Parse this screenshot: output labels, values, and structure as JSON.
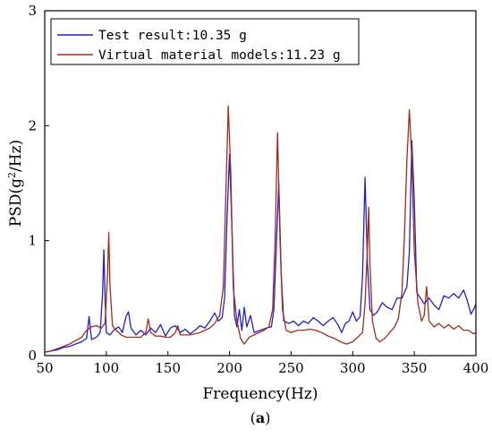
{
  "chart_data": {
    "type": "line",
    "title": "",
    "xlabel": "Frequency(Hz)",
    "ylabel": "PSD(g²/Hz)",
    "ylabel_parts": {
      "prefix": "PSD(g",
      "sup": "2",
      "suffix": "/Hz)"
    },
    "xlim": [
      50,
      400
    ],
    "ylim": [
      0,
      3
    ],
    "xticks": [
      50,
      100,
      150,
      200,
      250,
      300,
      350,
      400
    ],
    "yticks": [
      0,
      1,
      2,
      3
    ],
    "grid": false,
    "legend_position": "top-left",
    "subcaption_prefix": "(",
    "subcaption_letter": "a",
    "subcaption_suffix": ")",
    "series": [
      {
        "name": "Test result:10.35 g",
        "color": "#1f1fcc",
        "points": [
          [
            50,
            0.03
          ],
          [
            55,
            0.04
          ],
          [
            60,
            0.05
          ],
          [
            65,
            0.07
          ],
          [
            70,
            0.08
          ],
          [
            75,
            0.1
          ],
          [
            80,
            0.12
          ],
          [
            84,
            0.15
          ],
          [
            86,
            0.34
          ],
          [
            88,
            0.14
          ],
          [
            92,
            0.16
          ],
          [
            95,
            0.2
          ],
          [
            97,
            0.55
          ],
          [
            98,
            0.92
          ],
          [
            99,
            0.5
          ],
          [
            100,
            0.2
          ],
          [
            103,
            0.18
          ],
          [
            106,
            0.22
          ],
          [
            110,
            0.25
          ],
          [
            113,
            0.2
          ],
          [
            116,
            0.34
          ],
          [
            118,
            0.38
          ],
          [
            120,
            0.24
          ],
          [
            124,
            0.18
          ],
          [
            128,
            0.22
          ],
          [
            132,
            0.18
          ],
          [
            136,
            0.24
          ],
          [
            140,
            0.2
          ],
          [
            144,
            0.27
          ],
          [
            148,
            0.17
          ],
          [
            152,
            0.24
          ],
          [
            156,
            0.26
          ],
          [
            160,
            0.2
          ],
          [
            164,
            0.23
          ],
          [
            168,
            0.19
          ],
          [
            172,
            0.22
          ],
          [
            176,
            0.26
          ],
          [
            180,
            0.24
          ],
          [
            184,
            0.3
          ],
          [
            188,
            0.37
          ],
          [
            191,
            0.3
          ],
          [
            194,
            0.33
          ],
          [
            196,
            0.5
          ],
          [
            198,
            1.2
          ],
          [
            200,
            1.75
          ],
          [
            202,
            1.1
          ],
          [
            204,
            0.35
          ],
          [
            206,
            0.25
          ],
          [
            208,
            0.4
          ],
          [
            210,
            0.22
          ],
          [
            212,
            0.42
          ],
          [
            214,
            0.25
          ],
          [
            217,
            0.35
          ],
          [
            220,
            0.2
          ],
          [
            225,
            0.22
          ],
          [
            230,
            0.24
          ],
          [
            234,
            0.25
          ],
          [
            236,
            0.4
          ],
          [
            238,
            0.95
          ],
          [
            240,
            1.5
          ],
          [
            242,
            0.7
          ],
          [
            244,
            0.3
          ],
          [
            248,
            0.28
          ],
          [
            252,
            0.3
          ],
          [
            256,
            0.26
          ],
          [
            260,
            0.3
          ],
          [
            264,
            0.28
          ],
          [
            268,
            0.33
          ],
          [
            272,
            0.3
          ],
          [
            276,
            0.26
          ],
          [
            280,
            0.3
          ],
          [
            284,
            0.33
          ],
          [
            288,
            0.27
          ],
          [
            291,
            0.2
          ],
          [
            294,
            0.28
          ],
          [
            297,
            0.3
          ],
          [
            300,
            0.38
          ],
          [
            303,
            0.3
          ],
          [
            306,
            0.34
          ],
          [
            308,
            0.7
          ],
          [
            310,
            1.55
          ],
          [
            312,
            0.8
          ],
          [
            314,
            0.4
          ],
          [
            317,
            0.35
          ],
          [
            320,
            0.38
          ],
          [
            324,
            0.46
          ],
          [
            328,
            0.42
          ],
          [
            332,
            0.4
          ],
          [
            336,
            0.5
          ],
          [
            340,
            0.5
          ],
          [
            344,
            0.6
          ],
          [
            346,
            0.9
          ],
          [
            348,
            1.87
          ],
          [
            350,
            1.35
          ],
          [
            352,
            0.55
          ],
          [
            355,
            0.5
          ],
          [
            358,
            0.45
          ],
          [
            362,
            0.5
          ],
          [
            366,
            0.44
          ],
          [
            370,
            0.4
          ],
          [
            374,
            0.52
          ],
          [
            378,
            0.5
          ],
          [
            382,
            0.54
          ],
          [
            386,
            0.5
          ],
          [
            390,
            0.57
          ],
          [
            393,
            0.48
          ],
          [
            396,
            0.36
          ],
          [
            399,
            0.42
          ],
          [
            400,
            0.45
          ]
        ]
      },
      {
        "name": "Virtual material models:11.23 g",
        "color": "#a52a1a",
        "points": [
          [
            50,
            0.03
          ],
          [
            55,
            0.04
          ],
          [
            60,
            0.06
          ],
          [
            65,
            0.08
          ],
          [
            70,
            0.1
          ],
          [
            75,
            0.13
          ],
          [
            80,
            0.16
          ],
          [
            84,
            0.22
          ],
          [
            88,
            0.25
          ],
          [
            92,
            0.26
          ],
          [
            96,
            0.24
          ],
          [
            99,
            0.28
          ],
          [
            101,
            0.7
          ],
          [
            102,
            1.07
          ],
          [
            103,
            0.6
          ],
          [
            105,
            0.26
          ],
          [
            108,
            0.22
          ],
          [
            112,
            0.18
          ],
          [
            116,
            0.16
          ],
          [
            120,
            0.16
          ],
          [
            124,
            0.16
          ],
          [
            128,
            0.16
          ],
          [
            132,
            0.2
          ],
          [
            134,
            0.32
          ],
          [
            136,
            0.2
          ],
          [
            140,
            0.17
          ],
          [
            144,
            0.17
          ],
          [
            148,
            0.16
          ],
          [
            152,
            0.16
          ],
          [
            156,
            0.2
          ],
          [
            158,
            0.26
          ],
          [
            160,
            0.18
          ],
          [
            164,
            0.18
          ],
          [
            168,
            0.18
          ],
          [
            172,
            0.19
          ],
          [
            176,
            0.2
          ],
          [
            180,
            0.22
          ],
          [
            184,
            0.24
          ],
          [
            188,
            0.28
          ],
          [
            192,
            0.35
          ],
          [
            195,
            0.6
          ],
          [
            197,
            1.4
          ],
          [
            199,
            2.17
          ],
          [
            201,
            1.6
          ],
          [
            203,
            0.6
          ],
          [
            206,
            0.3
          ],
          [
            209,
            0.15
          ],
          [
            212,
            0.1
          ],
          [
            216,
            0.16
          ],
          [
            220,
            0.18
          ],
          [
            224,
            0.2
          ],
          [
            228,
            0.22
          ],
          [
            232,
            0.25
          ],
          [
            235,
            0.4
          ],
          [
            237,
            1.0
          ],
          [
            239,
            1.94
          ],
          [
            241,
            1.0
          ],
          [
            243,
            0.4
          ],
          [
            246,
            0.22
          ],
          [
            250,
            0.2
          ],
          [
            255,
            0.22
          ],
          [
            260,
            0.22
          ],
          [
            265,
            0.23
          ],
          [
            270,
            0.22
          ],
          [
            275,
            0.2
          ],
          [
            280,
            0.17
          ],
          [
            285,
            0.15
          ],
          [
            290,
            0.12
          ],
          [
            295,
            0.1
          ],
          [
            300,
            0.12
          ],
          [
            304,
            0.16
          ],
          [
            308,
            0.2
          ],
          [
            310,
            0.45
          ],
          [
            312,
            0.95
          ],
          [
            313,
            1.29
          ],
          [
            314,
            0.8
          ],
          [
            316,
            0.3
          ],
          [
            319,
            0.15
          ],
          [
            322,
            0.12
          ],
          [
            326,
            0.15
          ],
          [
            330,
            0.2
          ],
          [
            334,
            0.25
          ],
          [
            337,
            0.32
          ],
          [
            340,
            0.55
          ],
          [
            342,
            1.05
          ],
          [
            344,
            1.7
          ],
          [
            346,
            2.14
          ],
          [
            348,
            1.7
          ],
          [
            350,
            0.9
          ],
          [
            353,
            0.45
          ],
          [
            356,
            0.3
          ],
          [
            358,
            0.35
          ],
          [
            360,
            0.6
          ],
          [
            362,
            0.3
          ],
          [
            366,
            0.25
          ],
          [
            370,
            0.28
          ],
          [
            374,
            0.24
          ],
          [
            378,
            0.27
          ],
          [
            382,
            0.23
          ],
          [
            386,
            0.26
          ],
          [
            390,
            0.22
          ],
          [
            394,
            0.22
          ],
          [
            398,
            0.19
          ],
          [
            400,
            0.2
          ]
        ]
      }
    ]
  }
}
